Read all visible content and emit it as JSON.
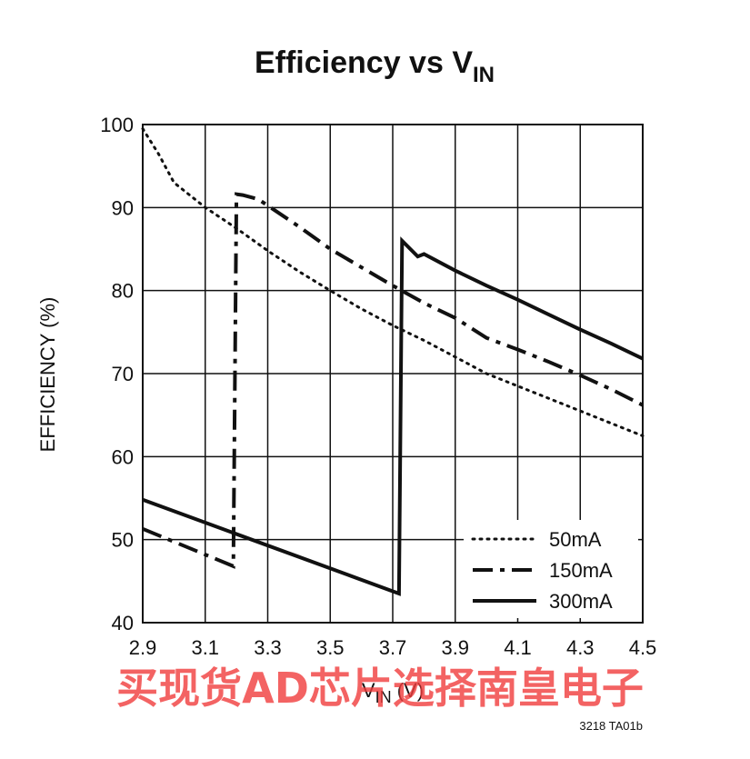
{
  "chart_data": {
    "type": "line",
    "title_main": "Efficiency vs V",
    "title_sub": "IN",
    "xlabel_main": "V",
    "xlabel_sub": "IN",
    "xlabel_unit": " (V)",
    "ylabel": "EFFICIENCY (%)",
    "xlim": [
      2.9,
      4.5
    ],
    "ylim": [
      40,
      100
    ],
    "xticks": [
      "2.9",
      "3.1",
      "3.3",
      "3.5",
      "3.7",
      "3.9",
      "4.1",
      "4.3",
      "4.5"
    ],
    "yticks": [
      "40",
      "50",
      "60",
      "70",
      "80",
      "90",
      "100"
    ],
    "grid": true,
    "legend_position": "bottom-right",
    "series": [
      {
        "name": "50mA",
        "style": "dotted",
        "x": [
          2.9,
          2.95,
          3.0,
          3.1,
          3.2,
          3.3,
          3.4,
          3.5,
          3.6,
          3.7,
          3.8,
          3.9,
          4.0,
          4.1,
          4.2,
          4.3,
          4.4,
          4.5
        ],
        "y": [
          99.5,
          96.5,
          93.0,
          90.0,
          87.5,
          84.8,
          82.3,
          80.0,
          77.8,
          75.8,
          74.0,
          72.0,
          70.0,
          68.5,
          67.0,
          65.5,
          64.0,
          62.5
        ]
      },
      {
        "name": "150mA",
        "style": "dashdot",
        "x": [
          2.9,
          3.19,
          3.2,
          3.22,
          3.27,
          3.4,
          3.5,
          3.6,
          3.7,
          3.8,
          3.9,
          4.0,
          4.1,
          4.2,
          4.3,
          4.4,
          4.5
        ],
        "y": [
          51.3,
          46.8,
          91.6,
          91.5,
          91.0,
          87.7,
          85.0,
          82.8,
          80.6,
          78.5,
          76.7,
          74.3,
          72.9,
          71.4,
          69.8,
          68.1,
          66.2
        ]
      },
      {
        "name": "300mA",
        "style": "solid",
        "x": [
          2.9,
          3.72,
          3.73,
          3.78,
          3.8,
          3.9,
          4.0,
          4.1,
          4.2,
          4.3,
          4.4,
          4.5
        ],
        "y": [
          54.8,
          43.5,
          86.0,
          84.1,
          84.4,
          82.4,
          80.6,
          78.9,
          77.1,
          75.3,
          73.6,
          71.8
        ]
      }
    ]
  },
  "footer_code": "3218 TA01b",
  "watermark_text": "买现货AD芯片选择南皇电子",
  "colors": {
    "line": "#111111",
    "grid": "#111111",
    "watermark": "#f03c3c"
  }
}
